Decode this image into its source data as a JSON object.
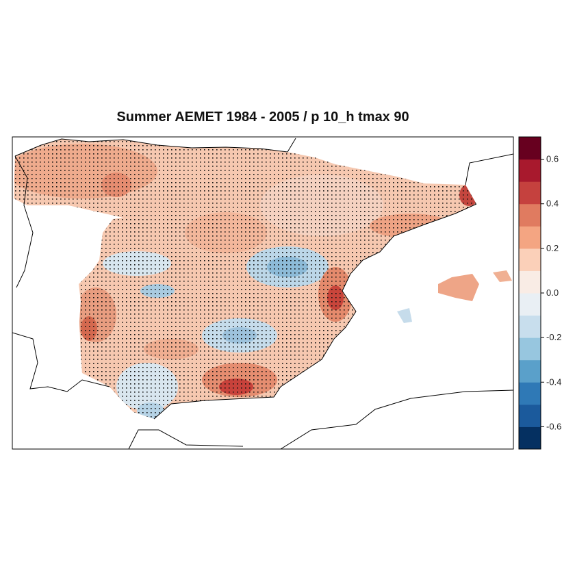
{
  "title": "Summer AEMET 1984 - 2005 / p 10_h tmax 90",
  "colorbar": {
    "min": -0.7,
    "max": 0.7,
    "ticks": [
      -0.6,
      -0.4,
      -0.2,
      0.0,
      0.2,
      0.4,
      0.6
    ],
    "tick_labels": [
      "-0.6",
      "-0.4",
      "-0.2",
      "0.0",
      "0.2",
      "0.4",
      "0.6"
    ],
    "colors": [
      "#053061",
      "#1b5a9c",
      "#2f79b6",
      "#5aa0ca",
      "#97c6df",
      "#c8deed",
      "#e9eff4",
      "#f9ece5",
      "#fbd0b9",
      "#f4a582",
      "#e07b60",
      "#c5413e",
      "#a8192d",
      "#67001f"
    ]
  },
  "map": {
    "variable": "correlation",
    "stippling": "significant grid cells marked with dots",
    "features": [
      {
        "region": "Cantabrian coast / Galicia",
        "value": 0.3
      },
      {
        "region": "Central plateau",
        "value": 0.1
      },
      {
        "region": "Ebro valley / NE interior",
        "value": -0.15
      },
      {
        "region": "Valencia coast",
        "value": 0.5
      },
      {
        "region": "Catalonia NE corner",
        "value": 0.55
      },
      {
        "region": "SE La Mancha",
        "value": -0.25
      },
      {
        "region": "Guadalquivir valley",
        "value": -0.1
      },
      {
        "region": "Sierra Nevada",
        "value": 0.5
      },
      {
        "region": "Extremadura west",
        "value": 0.35
      },
      {
        "region": "Balearic Islands",
        "value": 0.3
      }
    ]
  }
}
